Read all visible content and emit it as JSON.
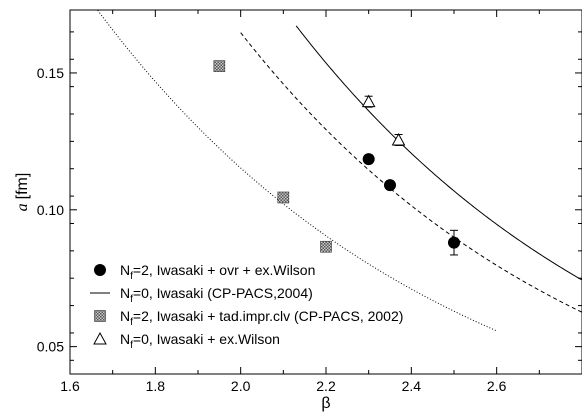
{
  "chart_data": {
    "type": "scatter",
    "xlabel": "β",
    "ylabel_symbol": "a",
    "ylabel_unit": "[fm]",
    "xlim": [
      1.6,
      2.8
    ],
    "ylim": [
      0.04,
      0.173
    ],
    "xticks": [
      1.6,
      1.8,
      2.0,
      2.2,
      2.4,
      2.6
    ],
    "xtick_labels": [
      "1.6",
      "1.8",
      "2.0",
      "2.2",
      "2.4",
      "2.6"
    ],
    "yticks": [
      0.05,
      0.1,
      0.15
    ],
    "ytick_labels": [
      "0.05",
      "0.10",
      "0.15"
    ],
    "grid": false,
    "legend_placement": "bottom-left",
    "series": [
      {
        "name": "N_f=2,  Iwasaki + ovr + ex.Wilson",
        "legend_parts": [
          "N",
          "f",
          "=2,  Iwasaki + ovr + ex.Wilson"
        ],
        "kind": "points",
        "marker": "filled-circle",
        "points": [
          {
            "x": 2.3,
            "y": 0.1185,
            "err": 0.0015
          },
          {
            "x": 2.35,
            "y": 0.109,
            "err": 0.0015
          },
          {
            "x": 2.5,
            "y": 0.088,
            "err": 0.0045
          }
        ]
      },
      {
        "name": "N_f=0,  Iwasaki  (CP-PACS,2004)",
        "legend_parts": [
          "N",
          "f",
          "=0,  Iwasaki  (CP-PACS,2004)"
        ],
        "kind": "curve",
        "style": "solid",
        "fit": {
          "a0": 0.1,
          "b0": 2.555,
          "k": 1.21
        },
        "x_range": [
          2.13,
          2.8
        ]
      },
      {
        "name": "N_f=2,  Iwasaki + tad.impr.clv (CP-PACS, 2002)",
        "legend_parts": [
          "N",
          "f",
          "=2,  Iwasaki + tad.impr.clv (CP-PACS, 2002)"
        ],
        "kind": "points",
        "marker": "hatched-square",
        "points": [
          {
            "x": 1.95,
            "y": 0.1525,
            "err": 0.0015
          },
          {
            "x": 2.1,
            "y": 0.1045,
            "err": 0.0007
          },
          {
            "x": 2.2,
            "y": 0.0865,
            "err": 0.0007
          }
        ]
      },
      {
        "name": "N_f=0,  Iwasaki + ex.Wilson",
        "legend_parts": [
          "N",
          "f",
          "=0,  Iwasaki + ex.Wilson"
        ],
        "kind": "points",
        "marker": "open-triangle",
        "points": [
          {
            "x": 2.3,
            "y": 0.1395,
            "err": 0.002
          },
          {
            "x": 2.37,
            "y": 0.1255,
            "err": 0.002
          }
        ]
      },
      {
        "name": "dashed fit",
        "kind": "curve",
        "style": "dashed",
        "fit": {
          "a0": 0.1,
          "b0": 2.4125,
          "k": 1.21
        },
        "x_range": [
          2.0,
          2.8
        ]
      },
      {
        "name": "dotted fit",
        "kind": "curve",
        "style": "dotted",
        "fit": {
          "a0": 0.1,
          "b0": 2.1175,
          "k": 1.21
        },
        "x_range": [
          1.64,
          2.6
        ]
      }
    ]
  }
}
